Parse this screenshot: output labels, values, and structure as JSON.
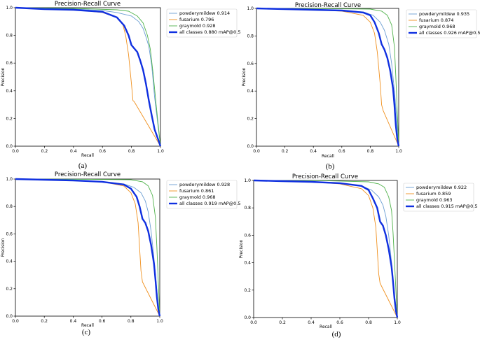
{
  "colors": {
    "powderymildew": "#6b9ed3",
    "fusarium": "#f0901e",
    "graymold": "#4fb24a",
    "all": "#1030e0"
  },
  "chart_data": [
    {
      "type": "line",
      "panel_label": "(a)",
      "title": "Precision-Recall Curve",
      "xlabel": "Recall",
      "ylabel": "Precision",
      "xlim": [
        0,
        1
      ],
      "ylim": [
        0,
        1
      ],
      "x_ticks": [
        "0.0",
        "0.2",
        "0.4",
        "0.6",
        "0.8",
        "1.0"
      ],
      "y_ticks": [
        "0.0",
        "0.2",
        "0.4",
        "0.6",
        "0.8",
        "1.0"
      ],
      "legend_position": "top-right",
      "series": [
        {
          "name": "powderymildew 0.914",
          "color_key": "powderymildew",
          "x": [
            0,
            0.2,
            0.4,
            0.6,
            0.7,
            0.8,
            0.85,
            0.88,
            0.9,
            0.92,
            0.94,
            0.96,
            1.0
          ],
          "y": [
            1,
            0.995,
            0.99,
            0.98,
            0.965,
            0.94,
            0.9,
            0.85,
            0.79,
            0.72,
            0.58,
            0.35,
            0
          ]
        },
        {
          "name": "fusarium 0.796",
          "color_key": "fusarium",
          "x": [
            0,
            0.2,
            0.4,
            0.6,
            0.7,
            0.74,
            0.76,
            0.78,
            0.8,
            0.81,
            0.82,
            1.0
          ],
          "y": [
            1,
            0.99,
            0.985,
            0.965,
            0.93,
            0.88,
            0.8,
            0.66,
            0.45,
            0.33,
            0.32,
            0
          ]
        },
        {
          "name": "graymold 0.928",
          "color_key": "graymold",
          "x": [
            0,
            0.4,
            0.7,
            0.78,
            0.84,
            0.88,
            0.91,
            0.93,
            0.95,
            0.97,
            1.0
          ],
          "y": [
            1,
            0.995,
            0.985,
            0.975,
            0.94,
            0.89,
            0.8,
            0.7,
            0.52,
            0.3,
            0
          ]
        },
        {
          "name": "all classes 0.880 mAP@0.5",
          "color_key": "all",
          "bold": true,
          "x": [
            0,
            0.2,
            0.4,
            0.6,
            0.7,
            0.75,
            0.78,
            0.8,
            0.84,
            0.86,
            0.88,
            0.9,
            0.92,
            0.94,
            0.96,
            0.98,
            1.0
          ],
          "y": [
            1,
            0.99,
            0.985,
            0.97,
            0.93,
            0.87,
            0.8,
            0.73,
            0.68,
            0.62,
            0.55,
            0.45,
            0.33,
            0.22,
            0.12,
            0.06,
            0
          ]
        }
      ]
    },
    {
      "type": "line",
      "panel_label": "(b)",
      "title": "Precision-Recall Curve",
      "xlabel": "Recall",
      "ylabel": "Precision",
      "xlim": [
        0,
        1
      ],
      "ylim": [
        0,
        1
      ],
      "x_ticks": [
        "0.0",
        "0.2",
        "0.4",
        "0.6",
        "0.8",
        "1.0"
      ],
      "y_ticks": [
        "0.0",
        "0.2",
        "0.4",
        "0.6",
        "0.8",
        "1.0"
      ],
      "legend_position": "top-right",
      "series": [
        {
          "name": "powderymildew 0.935",
          "color_key": "powderymildew",
          "x": [
            0,
            0.2,
            0.4,
            0.6,
            0.75,
            0.82,
            0.87,
            0.9,
            0.93,
            0.95,
            0.97,
            0.99,
            1.0
          ],
          "y": [
            1,
            0.995,
            0.99,
            0.985,
            0.975,
            0.95,
            0.9,
            0.84,
            0.74,
            0.6,
            0.4,
            0.15,
            0
          ]
        },
        {
          "name": "fusarium 0.874",
          "color_key": "fusarium",
          "x": [
            0,
            0.2,
            0.4,
            0.6,
            0.75,
            0.8,
            0.83,
            0.85,
            0.87,
            0.88,
            0.89,
            1.0
          ],
          "y": [
            1,
            0.995,
            0.99,
            0.98,
            0.95,
            0.9,
            0.82,
            0.68,
            0.45,
            0.3,
            0.26,
            0
          ]
        },
        {
          "name": "graymold 0.968",
          "color_key": "graymold",
          "x": [
            0,
            0.5,
            0.8,
            0.88,
            0.92,
            0.95,
            0.97,
            0.98,
            0.99,
            1.0
          ],
          "y": [
            1,
            0.998,
            0.995,
            0.98,
            0.95,
            0.88,
            0.72,
            0.5,
            0.25,
            0
          ]
        },
        {
          "name": "all classes 0.926 mAP@0.5",
          "color_key": "all",
          "bold": true,
          "x": [
            0,
            0.2,
            0.4,
            0.6,
            0.75,
            0.8,
            0.83,
            0.86,
            0.88,
            0.9,
            0.92,
            0.94,
            0.96,
            0.97,
            0.98,
            0.99,
            1.0
          ],
          "y": [
            1,
            0.995,
            0.99,
            0.985,
            0.97,
            0.95,
            0.9,
            0.82,
            0.74,
            0.7,
            0.64,
            0.55,
            0.42,
            0.3,
            0.15,
            0.05,
            0
          ]
        }
      ]
    },
    {
      "type": "line",
      "panel_label": "(c)",
      "title": "Precision-Recall Curve",
      "xlabel": "Recall",
      "ylabel": "Precision",
      "xlim": [
        0,
        1
      ],
      "ylim": [
        0,
        1
      ],
      "x_ticks": [
        "0.0",
        "0.2",
        "0.4",
        "0.6",
        "0.8",
        "1.0"
      ],
      "y_ticks": [
        "0.0",
        "0.2",
        "0.4",
        "0.6",
        "0.8",
        "1.0"
      ],
      "legend_position": "top-right",
      "series": [
        {
          "name": "powderymildew 0.928",
          "color_key": "powderymildew",
          "x": [
            0,
            0.2,
            0.4,
            0.6,
            0.75,
            0.82,
            0.87,
            0.9,
            0.92,
            0.94,
            0.96,
            0.98,
            1.0
          ],
          "y": [
            1,
            0.995,
            0.99,
            0.98,
            0.965,
            0.94,
            0.9,
            0.84,
            0.76,
            0.62,
            0.42,
            0.18,
            0
          ]
        },
        {
          "name": "fusarium 0.861",
          "color_key": "fusarium",
          "x": [
            0,
            0.2,
            0.4,
            0.6,
            0.75,
            0.8,
            0.83,
            0.85,
            0.86,
            0.87,
            0.88,
            1.0
          ],
          "y": [
            1,
            0.995,
            0.99,
            0.98,
            0.95,
            0.9,
            0.82,
            0.68,
            0.5,
            0.33,
            0.25,
            0
          ]
        },
        {
          "name": "graymold 0.968",
          "color_key": "graymold",
          "x": [
            0,
            0.5,
            0.8,
            0.88,
            0.92,
            0.95,
            0.97,
            0.98,
            0.99,
            1.0
          ],
          "y": [
            1,
            0.998,
            0.995,
            0.98,
            0.95,
            0.88,
            0.72,
            0.5,
            0.25,
            0
          ]
        },
        {
          "name": "all classes 0.919 mAP@0.5",
          "color_key": "all",
          "bold": true,
          "x": [
            0,
            0.2,
            0.4,
            0.6,
            0.75,
            0.8,
            0.84,
            0.86,
            0.88,
            0.9,
            0.92,
            0.94,
            0.96,
            0.97,
            0.98,
            0.99,
            1.0
          ],
          "y": [
            1,
            0.995,
            0.99,
            0.98,
            0.96,
            0.93,
            0.87,
            0.8,
            0.71,
            0.68,
            0.62,
            0.52,
            0.38,
            0.27,
            0.14,
            0.05,
            0
          ]
        }
      ]
    },
    {
      "type": "line",
      "panel_label": "(d)",
      "title": "Precision-Recall Curve",
      "xlabel": "Recall",
      "ylabel": "Precision",
      "xlim": [
        0,
        1
      ],
      "ylim": [
        0,
        1
      ],
      "x_ticks": [
        "0.0",
        "0.2",
        "0.4",
        "0.6",
        "0.8",
        "1.0"
      ],
      "y_ticks": [
        "0.0",
        "0.2",
        "0.4",
        "0.6",
        "0.8",
        "1.0"
      ],
      "legend_position": "top-right",
      "series": [
        {
          "name": "powderymildew 0.922",
          "color_key": "powderymildew",
          "x": [
            0,
            0.2,
            0.4,
            0.6,
            0.75,
            0.82,
            0.87,
            0.9,
            0.92,
            0.94,
            0.96,
            0.98,
            1.0
          ],
          "y": [
            1,
            0.995,
            0.99,
            0.98,
            0.96,
            0.93,
            0.88,
            0.82,
            0.74,
            0.6,
            0.4,
            0.17,
            0
          ]
        },
        {
          "name": "fusarium 0.859",
          "color_key": "fusarium",
          "x": [
            0,
            0.2,
            0.4,
            0.6,
            0.75,
            0.8,
            0.83,
            0.85,
            0.86,
            0.87,
            0.88,
            1.0
          ],
          "y": [
            1,
            0.995,
            0.99,
            0.975,
            0.94,
            0.89,
            0.8,
            0.66,
            0.5,
            0.32,
            0.25,
            0
          ]
        },
        {
          "name": "graymold 0.963",
          "color_key": "graymold",
          "x": [
            0,
            0.5,
            0.8,
            0.87,
            0.91,
            0.94,
            0.96,
            0.97,
            0.98,
            0.99,
            1.0
          ],
          "y": [
            1,
            0.998,
            0.99,
            0.975,
            0.95,
            0.88,
            0.78,
            0.62,
            0.42,
            0.2,
            0
          ]
        },
        {
          "name": "all classes 0.915 mAP@0.5",
          "color_key": "all",
          "bold": true,
          "x": [
            0,
            0.2,
            0.4,
            0.6,
            0.75,
            0.8,
            0.83,
            0.86,
            0.88,
            0.9,
            0.92,
            0.94,
            0.96,
            0.97,
            0.98,
            0.99,
            1.0
          ],
          "y": [
            1,
            0.995,
            0.99,
            0.98,
            0.96,
            0.93,
            0.87,
            0.8,
            0.7,
            0.67,
            0.6,
            0.5,
            0.37,
            0.26,
            0.14,
            0.05,
            0
          ]
        }
      ]
    }
  ]
}
